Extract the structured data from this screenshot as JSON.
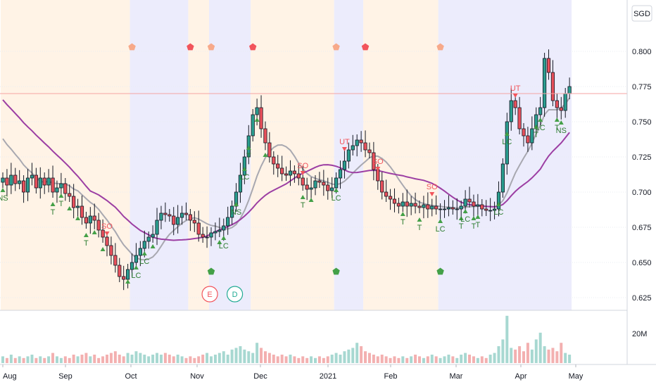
{
  "chart_data": {
    "type": "candlestick",
    "currency": "SGD",
    "ylim": [
      0.615,
      0.815
    ],
    "y_ticks": [
      "0.800",
      "0.775",
      "0.750",
      "0.725",
      "0.700",
      "0.675",
      "0.650",
      "0.625"
    ],
    "x_ticks": [
      "Aug",
      "Sep",
      "Oct",
      "Nov",
      "Dec",
      "2021",
      "Feb",
      "Mar",
      "Apr",
      "May"
    ],
    "volume_tick": "20M",
    "price_line": 0.77,
    "bg_bands": [
      {
        "from": 0,
        "to": 31,
        "color": "#fff3e6"
      },
      {
        "from": 31,
        "to": 45,
        "color": "#ececfc"
      },
      {
        "from": 45,
        "to": 50,
        "color": "#fff3e6"
      },
      {
        "from": 50,
        "to": 60,
        "color": "#ececfc"
      },
      {
        "from": 60,
        "to": 80,
        "color": "#fff3e6"
      },
      {
        "from": 80,
        "to": 87,
        "color": "#ececfc"
      },
      {
        "from": 87,
        "to": 105,
        "color": "#fff3e6"
      },
      {
        "from": 105,
        "to": 137,
        "color": "#ececfc"
      }
    ],
    "closes": [
      0.71,
      0.705,
      0.712,
      0.706,
      0.708,
      0.7,
      0.71,
      0.712,
      0.703,
      0.71,
      0.705,
      0.71,
      0.7,
      0.703,
      0.706,
      0.699,
      0.697,
      0.689,
      0.69,
      0.682,
      0.678,
      0.683,
      0.68,
      0.673,
      0.668,
      0.662,
      0.655,
      0.648,
      0.64,
      0.638,
      0.645,
      0.65,
      0.655,
      0.66,
      0.665,
      0.668,
      0.67,
      0.68,
      0.685,
      0.684,
      0.683,
      0.677,
      0.682,
      0.685,
      0.684,
      0.68,
      0.678,
      0.67,
      0.668,
      0.668,
      0.671,
      0.672,
      0.673,
      0.676,
      0.682,
      0.69,
      0.7,
      0.712,
      0.725,
      0.74,
      0.755,
      0.76,
      0.745,
      0.735,
      0.725,
      0.72,
      0.717,
      0.713,
      0.712,
      0.715,
      0.713,
      0.71,
      0.705,
      0.702,
      0.703,
      0.708,
      0.707,
      0.705,
      0.701,
      0.703,
      0.71,
      0.716,
      0.722,
      0.73,
      0.733,
      0.737,
      0.735,
      0.73,
      0.728,
      0.716,
      0.708,
      0.7,
      0.697,
      0.695,
      0.692,
      0.69,
      0.693,
      0.69,
      0.692,
      0.69,
      0.689,
      0.691,
      0.688,
      0.69,
      0.688,
      0.688,
      0.688,
      0.689,
      0.688,
      0.688,
      0.69,
      0.695,
      0.693,
      0.69,
      0.691,
      0.688,
      0.687,
      0.687,
      0.688,
      0.7,
      0.72,
      0.75,
      0.765,
      0.76,
      0.745,
      0.74,
      0.735,
      0.745,
      0.755,
      0.76,
      0.795,
      0.785,
      0.765,
      0.76,
      0.758,
      0.77,
      0.775
    ],
    "volumes": [
      4,
      3,
      5,
      3,
      4,
      3,
      4,
      5,
      3,
      4,
      3,
      4,
      6,
      4,
      3,
      4,
      3,
      5,
      4,
      5,
      6,
      4,
      5,
      3,
      4,
      5,
      6,
      7,
      5,
      4,
      6,
      5,
      7,
      6,
      5,
      4,
      5,
      6,
      5,
      6,
      5,
      4,
      5,
      4,
      3,
      4,
      3,
      4,
      5,
      6,
      4,
      5,
      6,
      7,
      5,
      8,
      9,
      10,
      8,
      7,
      6,
      12,
      9,
      7,
      6,
      5,
      4,
      5,
      4,
      5,
      4,
      3,
      4,
      3,
      4,
      3,
      4,
      3,
      4,
      5,
      6,
      5,
      7,
      8,
      9,
      12,
      10,
      7,
      6,
      5,
      4,
      5,
      4,
      3,
      4,
      3,
      4,
      3,
      4,
      5,
      4,
      3,
      4,
      5,
      4,
      3,
      4,
      5,
      4,
      3,
      5,
      6,
      5,
      4,
      3,
      4,
      3,
      5,
      6,
      10,
      14,
      28,
      9,
      8,
      10,
      7,
      12,
      8,
      14,
      18,
      10,
      8,
      9,
      7,
      12,
      6,
      5
    ],
    "sma_fast_start": 0.735,
    "sma_slow_start": 0.755,
    "upper_markers": [
      {
        "i": 31,
        "color": "#f7a98a"
      },
      {
        "i": 45,
        "color": "#f2545b"
      },
      {
        "i": 50,
        "color": "#f7a98a"
      },
      {
        "i": 60,
        "color": "#f2545b"
      },
      {
        "i": 80,
        "color": "#f7a98a"
      },
      {
        "i": 87,
        "color": "#f2545b"
      },
      {
        "i": 105,
        "color": "#f7a98a"
      }
    ],
    "lower_markers": [
      50,
      80,
      105
    ],
    "sell_signals": [
      {
        "i": 25,
        "label": "SO"
      },
      {
        "i": 72,
        "label": "SO"
      },
      {
        "i": 82,
        "label": "UT"
      },
      {
        "i": 90,
        "label": "SO"
      },
      {
        "i": 103,
        "label": "SO"
      },
      {
        "i": 123,
        "label": "UT"
      }
    ],
    "buy_signals": [
      {
        "i": 0,
        "label": "NS"
      },
      {
        "i": 12,
        "label": "T"
      },
      {
        "i": 14,
        "label": "T"
      },
      {
        "i": 16,
        "label": ""
      },
      {
        "i": 18,
        "label": ""
      },
      {
        "i": 20,
        "label": "T"
      },
      {
        "i": 22,
        "label": ""
      },
      {
        "i": 24,
        "label": ""
      },
      {
        "i": 30,
        "label": ""
      },
      {
        "i": 32,
        "label": "LC"
      },
      {
        "i": 34,
        "label": "LC"
      },
      {
        "i": 36,
        "label": ""
      },
      {
        "i": 52,
        "label": ""
      },
      {
        "i": 53,
        "label": "LC"
      },
      {
        "i": 56,
        "label": "NS"
      },
      {
        "i": 58,
        "label": "LC"
      },
      {
        "i": 59,
        "label": "T"
      },
      {
        "i": 61,
        "label": ""
      },
      {
        "i": 63,
        "label": ""
      },
      {
        "i": 72,
        "label": "T"
      },
      {
        "i": 74,
        "label": ""
      },
      {
        "i": 80,
        "label": "LC"
      },
      {
        "i": 96,
        "label": "T"
      },
      {
        "i": 100,
        "label": "T"
      },
      {
        "i": 105,
        "label": "LC"
      },
      {
        "i": 110,
        "label": "T"
      },
      {
        "i": 111,
        "label": "LC"
      },
      {
        "i": 113,
        "label": "T"
      },
      {
        "i": 114,
        "label": "T"
      },
      {
        "i": 119,
        "label": "LC"
      },
      {
        "i": 121,
        "label": "LC"
      },
      {
        "i": 128,
        "label": "T"
      },
      {
        "i": 129,
        "label": "LC"
      },
      {
        "i": 133,
        "label": "T"
      },
      {
        "i": 134,
        "label": "NS"
      }
    ],
    "badges": [
      {
        "i": 49,
        "label": "E",
        "color": "#f2545b"
      },
      {
        "i": 55,
        "label": "D",
        "color": "#22ab94"
      }
    ]
  }
}
